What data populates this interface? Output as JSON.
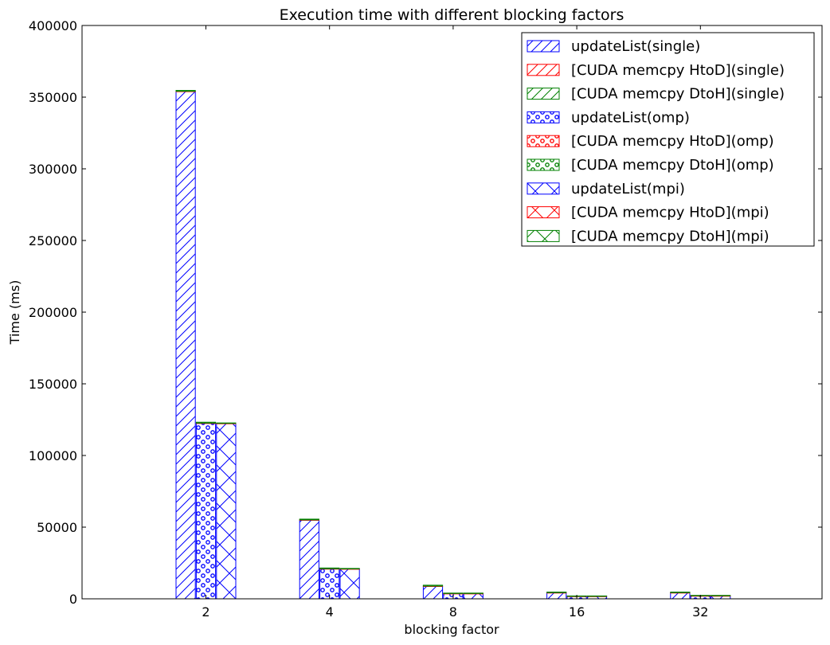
{
  "chart_data": {
    "type": "bar",
    "stacked_within_group": true,
    "title": "Execution time with different blocking factors",
    "xlabel": "blocking factor",
    "ylabel": "Time (ms)",
    "ylim": [
      0,
      400000
    ],
    "yticks": [
      0,
      50000,
      100000,
      150000,
      200000,
      250000,
      300000,
      350000,
      400000
    ],
    "yticks_labels": [
      "0",
      "50000",
      "100000",
      "150000",
      "200000",
      "250000",
      "300000",
      "350000",
      "400000"
    ],
    "categories": [
      "2",
      "4",
      "8",
      "16",
      "32"
    ],
    "groups": [
      "single",
      "omp",
      "mpi"
    ],
    "legend_position": "top-right",
    "grid": false,
    "series": [
      {
        "name": "updateList(single)",
        "group": "single",
        "component": "updateList",
        "color": "#0000ff",
        "hatch": "diagonal",
        "values": [
          353900,
          54900,
          8700,
          4200,
          4200
        ]
      },
      {
        "name": "[CUDA memcpy HtoD](single)",
        "group": "single",
        "component": "HtoD",
        "color": "#ff0000",
        "hatch": "diagonal",
        "values": [
          200,
          200,
          200,
          100,
          100
        ]
      },
      {
        "name": "[CUDA memcpy DtoH](single)",
        "group": "single",
        "component": "DtoH",
        "color": "#008000",
        "hatch": "diagonal",
        "values": [
          600,
          500,
          600,
          400,
          400
        ]
      },
      {
        "name": "updateList(omp)",
        "group": "omp",
        "component": "updateList",
        "color": "#0000ff",
        "hatch": "dots",
        "values": [
          122400,
          20800,
          3600,
          1700,
          2000
        ]
      },
      {
        "name": "[CUDA memcpy HtoD](omp)",
        "group": "omp",
        "component": "HtoD",
        "color": "#ff0000",
        "hatch": "dots",
        "values": [
          200,
          200,
          100,
          100,
          100
        ]
      },
      {
        "name": "[CUDA memcpy DtoH](omp)",
        "group": "omp",
        "component": "DtoH",
        "color": "#008000",
        "hatch": "dots",
        "values": [
          600,
          500,
          300,
          200,
          300
        ]
      },
      {
        "name": "updateList(mpi)",
        "group": "mpi",
        "component": "updateList",
        "color": "#0000ff",
        "hatch": "cross",
        "values": [
          122300,
          20800,
          3600,
          1700,
          2000
        ]
      },
      {
        "name": "[CUDA memcpy HtoD](mpi)",
        "group": "mpi",
        "component": "HtoD",
        "color": "#ff0000",
        "hatch": "cross",
        "values": [
          100,
          100,
          100,
          100,
          100
        ]
      },
      {
        "name": "[CUDA memcpy DtoH](mpi)",
        "group": "mpi",
        "component": "DtoH",
        "color": "#008000",
        "hatch": "cross",
        "values": [
          300,
          300,
          300,
          200,
          300
        ]
      }
    ]
  }
}
